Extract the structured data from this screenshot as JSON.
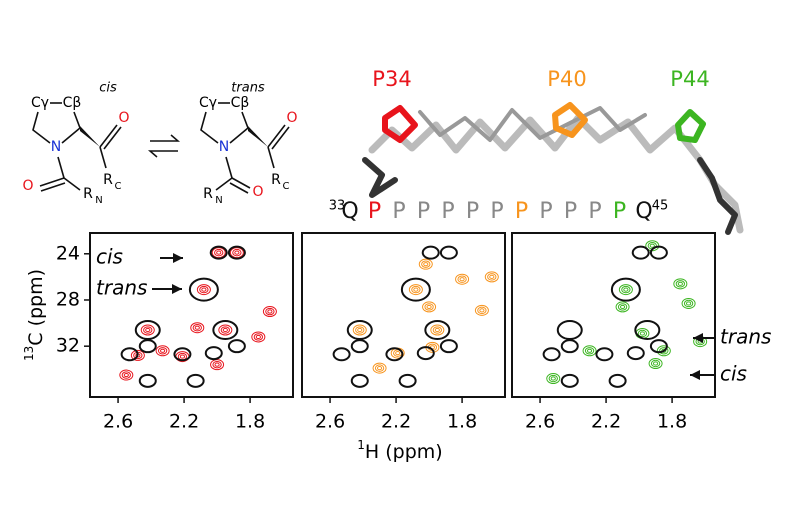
{
  "scheme": {
    "left": {
      "label": "cis",
      "gamma": "Cγ",
      "beta": "Cβ",
      "n": "N",
      "o1": "O",
      "o2": "O",
      "rc": "R",
      "rcsub": "C",
      "rn": "R",
      "rnsub": "N"
    },
    "right": {
      "label": "trans",
      "gamma": "Cγ",
      "beta": "Cβ",
      "n": "N",
      "o1": "O",
      "o2": "O",
      "rc": "R",
      "rcsub": "C",
      "rn": "R",
      "rnsub": "N"
    }
  },
  "model": {
    "labels": [
      {
        "text": "P34",
        "color": "#e8141c"
      },
      {
        "text": "P40",
        "color": "#f7941d"
      },
      {
        "text": "P44",
        "color": "#3cb521"
      }
    ]
  },
  "sequence": {
    "start": "33",
    "end": "45",
    "residues": [
      {
        "text": "Q",
        "color": "#111111"
      },
      {
        "text": "P",
        "color": "#e8141c"
      },
      {
        "text": "P",
        "color": "#888888"
      },
      {
        "text": "P",
        "color": "#888888"
      },
      {
        "text": "P",
        "color": "#888888"
      },
      {
        "text": "P",
        "color": "#888888"
      },
      {
        "text": "P",
        "color": "#888888"
      },
      {
        "text": "P",
        "color": "#f7941d"
      },
      {
        "text": "P",
        "color": "#888888"
      },
      {
        "text": "P",
        "color": "#888888"
      },
      {
        "text": "P",
        "color": "#888888"
      },
      {
        "text": "P",
        "color": "#3cb521"
      },
      {
        "text": "Q",
        "color": "#111111"
      }
    ]
  },
  "spectra": {
    "ylabel_sup": "13",
    "ylabel": "C (ppm)",
    "xlabel_sup": "1",
    "xlabel": "H (ppm)",
    "xlim": [
      2.77,
      1.54
    ],
    "ylim": [
      22.2,
      36.4
    ],
    "xticks": [
      2.6,
      2.2,
      1.8
    ],
    "yticks": [
      24,
      28,
      32
    ],
    "annotations": {
      "cis_left": "cis",
      "trans_left": "trans",
      "trans_right": "trans",
      "cis_right": "cis"
    },
    "circles": {
      "x": [
        1.99,
        1.88,
        2.08,
        2.42,
        1.95,
        2.53,
        2.42,
        2.21,
        2.02,
        1.88,
        2.42,
        2.13
      ],
      "y": [
        23.9,
        23.9,
        27.1,
        30.6,
        30.6,
        32.7,
        32.0,
        32.7,
        32.6,
        32.0,
        35.0,
        35.0
      ]
    },
    "panels": [
      {
        "color": "#e8141c",
        "x": [
          1.99,
          1.88,
          2.08,
          2.42,
          1.95,
          1.68,
          2.12,
          2.33,
          2.48,
          2.21,
          2.0,
          1.75,
          2.55
        ],
        "y": [
          23.9,
          23.9,
          27.1,
          30.6,
          30.6,
          29.0,
          30.4,
          32.4,
          32.8,
          32.9,
          33.6,
          31.2,
          34.5
        ]
      },
      {
        "color": "#f7941d",
        "x": [
          2.08,
          2.42,
          1.95,
          2.0,
          1.68,
          2.02,
          1.8,
          2.3,
          2.19,
          1.62,
          1.98
        ],
        "y": [
          27.1,
          30.6,
          30.6,
          28.6,
          28.9,
          24.9,
          26.2,
          33.9,
          32.6,
          26.0,
          32.1
        ]
      },
      {
        "color": "#3cb521",
        "x": [
          2.08,
          2.3,
          1.85,
          1.92,
          1.75,
          1.7,
          2.1,
          1.9,
          2.52,
          1.98,
          1.63
        ],
        "y": [
          27.1,
          32.4,
          32.4,
          23.3,
          26.6,
          28.3,
          28.6,
          33.5,
          34.8,
          30.9,
          31.6
        ]
      }
    ]
  }
}
